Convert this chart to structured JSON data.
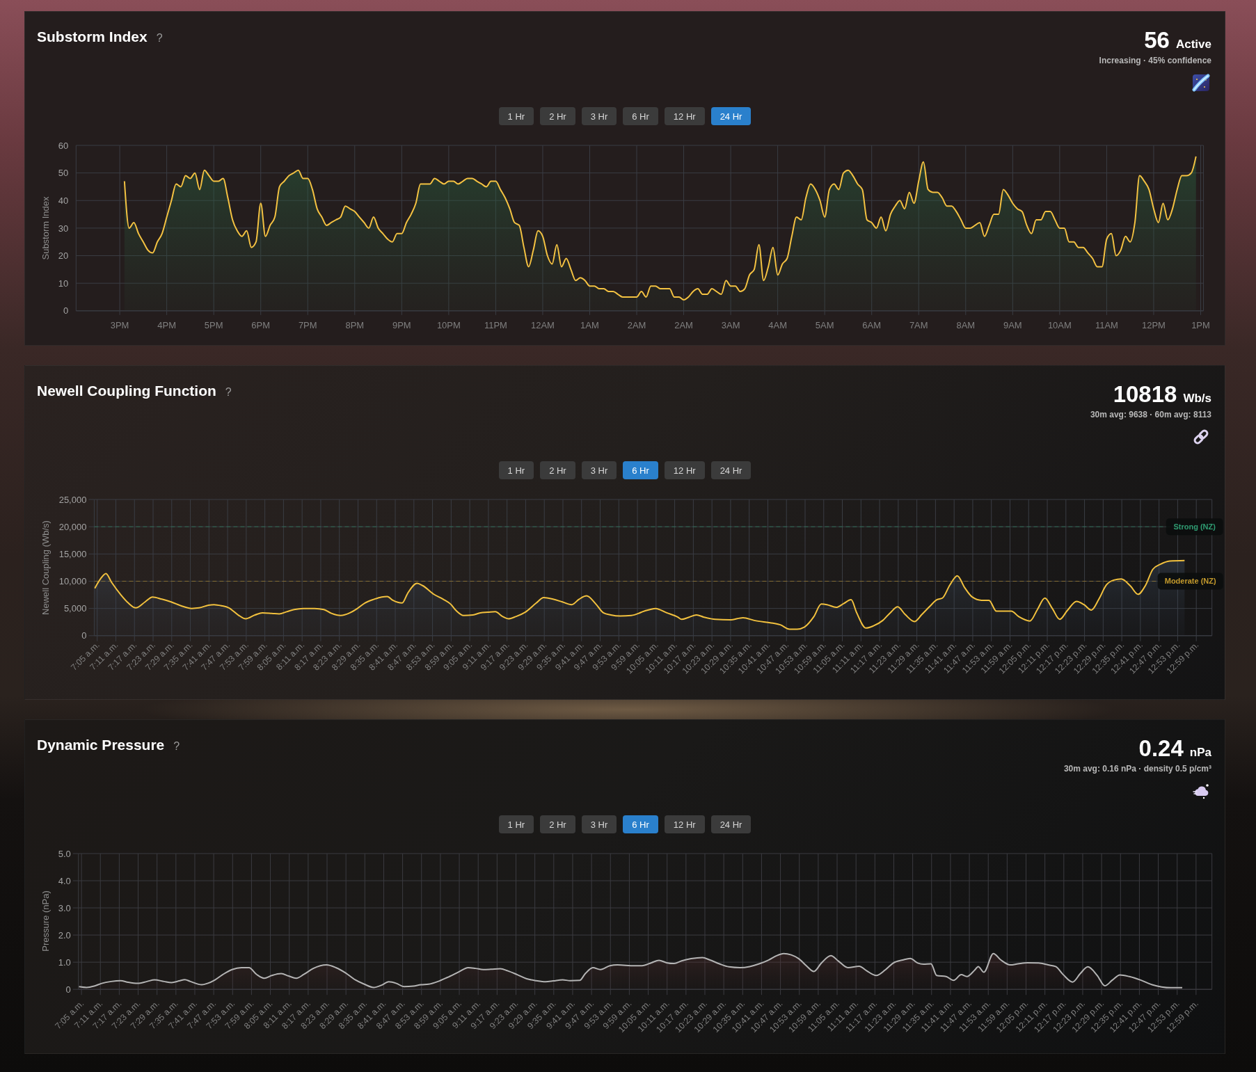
{
  "chart_data": [
    {
      "type": "area",
      "title": "Substorm Index",
      "ylabel": "Substorm Index",
      "annotations": [
        "?",
        "56",
        "Active",
        "Increasing · 45% confidence",
        "1 Hr",
        "2 Hr",
        "3 Hr",
        "6 Hr",
        "12 Hr",
        "24 Hr"
      ],
      "categories": [
        null,
        null,
        null,
        null,
        null,
        null,
        null,
        null,
        null,
        "3PM",
        null,
        null,
        null,
        null,
        null,
        null,
        null,
        null,
        null,
        "4PM",
        null,
        null,
        null,
        null,
        null,
        null,
        null,
        null,
        null,
        "5PM",
        null,
        null,
        null,
        null,
        null,
        null,
        null,
        null,
        null,
        "6PM",
        null,
        null,
        null,
        null,
        null,
        null,
        null,
        null,
        null,
        "7PM",
        null,
        null,
        null,
        null,
        null,
        null,
        null,
        null,
        null,
        "8PM",
        null,
        null,
        null,
        null,
        null,
        null,
        null,
        null,
        null,
        "9PM",
        null,
        null,
        null,
        null,
        null,
        null,
        null,
        null,
        null,
        "10PM",
        null,
        null,
        null,
        null,
        null,
        null,
        null,
        null,
        null,
        "11PM",
        null,
        null,
        null,
        null,
        null,
        null,
        null,
        null,
        null,
        "12AM",
        null,
        null,
        null,
        null,
        null,
        null,
        null,
        null,
        null,
        "1AM",
        null,
        null,
        null,
        null,
        null,
        null,
        null,
        null,
        null,
        "2AM",
        null,
        null,
        null,
        null,
        null,
        null,
        null,
        null,
        null,
        "2AM",
        null,
        null,
        null,
        null,
        null,
        null,
        null,
        null,
        null,
        "3AM",
        null,
        null,
        null,
        null,
        null,
        null,
        null,
        null,
        null,
        "4AM",
        null,
        null,
        null,
        null,
        null,
        null,
        null,
        null,
        null,
        "5AM",
        null,
        null,
        null,
        null,
        null,
        null,
        null,
        null,
        null,
        "6AM",
        null,
        null,
        null,
        null,
        null,
        null,
        null,
        null,
        null,
        "7AM",
        null,
        null,
        null,
        null,
        null,
        null,
        null,
        null,
        null,
        "8AM",
        null,
        null,
        null,
        null,
        null,
        null,
        null,
        null,
        null,
        "9AM",
        null,
        null,
        null,
        null,
        null,
        null,
        null,
        null,
        null,
        "10AM",
        null,
        null,
        null,
        null,
        null,
        null,
        null,
        null,
        null,
        "11AM",
        null,
        null,
        null,
        null,
        null,
        null,
        null,
        null,
        null,
        "12PM",
        null,
        null,
        null,
        null,
        null,
        null,
        null,
        null,
        null,
        "1PM"
      ],
      "values": [
        null,
        null,
        null,
        null,
        null,
        null,
        null,
        null,
        null,
        null,
        47,
        30,
        32,
        28,
        25,
        22,
        21,
        25,
        28,
        34,
        40,
        46,
        45,
        49,
        48,
        50,
        44,
        51,
        49,
        47,
        47,
        48,
        41,
        33,
        29,
        27,
        29,
        23,
        25,
        39,
        27,
        31,
        34,
        45,
        47,
        49,
        50,
        51,
        48,
        48,
        44,
        37,
        34,
        31,
        32,
        33,
        34,
        38,
        37,
        36,
        34,
        32,
        30,
        34,
        30,
        28,
        26,
        25,
        28,
        28,
        32,
        35,
        39,
        46,
        46,
        46,
        48,
        47,
        46,
        47,
        47,
        46,
        47,
        48,
        48,
        47,
        46,
        45,
        47,
        47,
        44,
        41,
        37,
        32,
        31,
        23,
        16,
        22,
        29,
        27,
        20,
        17,
        24,
        16,
        19,
        15,
        11,
        12,
        11,
        9,
        9,
        8,
        8,
        7,
        7,
        6,
        5,
        5,
        5,
        5,
        7,
        5,
        9,
        9,
        8,
        8,
        8,
        5,
        5,
        4,
        5,
        7,
        8,
        6,
        6,
        8,
        7,
        6,
        11,
        9,
        9,
        7,
        8,
        13,
        15,
        24,
        11,
        16,
        23,
        13,
        17,
        19,
        27,
        34,
        33,
        41,
        46,
        44,
        40,
        34,
        44,
        46,
        44,
        50,
        51,
        49,
        46,
        44,
        33,
        32,
        30,
        34,
        29,
        35,
        38,
        40,
        37,
        43,
        39,
        47,
        54,
        44,
        43,
        43,
        41,
        38,
        38,
        36,
        33,
        30,
        30,
        31,
        32,
        27,
        31,
        35,
        35,
        44,
        42,
        39,
        37,
        36,
        31,
        28,
        33,
        33,
        36,
        36,
        33,
        30,
        30,
        25,
        25,
        23,
        23,
        21,
        19,
        16,
        16,
        26,
        28,
        20,
        22,
        27,
        25,
        32,
        49,
        47,
        44,
        37,
        32,
        39,
        33,
        37,
        44,
        49,
        49,
        50,
        56,
        null
      ],
      "color": "#f4c242",
      "ylim": [
        0,
        60
      ],
      "yticks": [
        0,
        10,
        20,
        30,
        40,
        50,
        60
      ],
      "grid": true
    },
    {
      "type": "area",
      "title": "Newell Coupling Function",
      "ylabel": "Newell Coupling (Wb/s)",
      "annotations": [
        "?",
        "10818",
        "Wb/s",
        "30m avg: 9638 · 60m avg: 8113",
        "1 Hr",
        "2 Hr",
        "3 Hr",
        "6 Hr",
        "12 Hr",
        "24 Hr"
      ],
      "x": [
        7.07,
        7.1,
        7.13,
        7.16,
        7.21,
        7.25,
        7.29,
        7.34,
        7.38,
        7.43,
        7.48,
        7.54,
        7.59,
        7.63,
        7.68,
        7.71,
        7.75,
        7.79,
        7.84,
        7.88,
        7.93,
        7.97,
        8.02,
        8.06,
        8.1,
        8.14,
        8.19,
        8.25,
        8.3,
        8.34,
        8.39,
        8.44,
        8.48,
        8.52,
        8.57,
        8.61,
        8.64,
        8.67,
        8.72,
        8.75,
        8.8,
        8.83,
        8.89,
        8.94,
        8.98,
        9.01,
        9.05,
        9.1,
        9.14,
        9.18,
        9.22,
        9.26,
        9.29,
        9.33,
        9.38,
        9.44,
        9.48,
        9.53,
        9.58,
        9.63,
        9.67,
        9.71,
        9.76,
        9.8,
        9.84,
        9.89,
        9.95,
        9.99,
        10.01,
        10.05,
        10.08,
        10.14,
        10.2,
        10.22,
        10.26,
        10.3,
        10.34,
        10.4,
        10.48,
        10.55,
        10.61,
        10.71,
        10.75,
        10.8,
        10.84,
        10.88,
        10.93,
        10.97,
        11,
        11.05,
        11.09,
        11.13,
        11.16,
        11.21,
        11.25,
        11.3,
        11.34,
        11.38,
        11.42,
        11.47,
        11.51,
        11.55,
        11.59,
        11.62,
        11.66,
        11.7,
        11.74,
        11.78,
        11.83,
        11.87,
        11.91,
        11.95,
        11.99,
        12.03,
        12.09,
        12.13,
        12.17,
        12.21,
        12.25,
        12.29,
        12.34,
        12.38,
        12.42,
        12.46,
        12.5,
        12.54,
        12.58,
        12.63,
        12.67,
        12.71,
        12.75,
        12.79,
        12.84,
        12.92
      ],
      "values": [
        8700,
        10400,
        11400,
        9800,
        7500,
        6000,
        5100,
        6200,
        7100,
        6700,
        6200,
        5400,
        5000,
        5100,
        5600,
        5700,
        5500,
        5100,
        3800,
        3100,
        3800,
        4200,
        4100,
        4000,
        4400,
        4800,
        5000,
        5000,
        4800,
        4100,
        3700,
        4200,
        5000,
        6000,
        6700,
        7100,
        7200,
        6500,
        6000,
        7800,
        9600,
        9200,
        7600,
        6700,
        5800,
        4600,
        3700,
        3800,
        4200,
        4300,
        4400,
        3500,
        3100,
        3500,
        4300,
        6000,
        7000,
        6700,
        6200,
        5700,
        6700,
        7300,
        5800,
        4200,
        3800,
        3600,
        3700,
        4100,
        4400,
        4800,
        5000,
        4200,
        3400,
        3000,
        3400,
        3800,
        3400,
        3000,
        2900,
        3300,
        2800,
        2300,
        2000,
        1200,
        1200,
        1600,
        3500,
        5800,
        5700,
        5200,
        5900,
        6600,
        4200,
        1400,
        1800,
        2800,
        4200,
        5300,
        3900,
        2600,
        3900,
        5300,
        6600,
        6900,
        9300,
        11000,
        8800,
        7100,
        6500,
        6500,
        4500,
        4500,
        4500,
        3500,
        2700,
        4800,
        6900,
        5000,
        3000,
        4600,
        6300,
        5700,
        4700,
        6700,
        9300,
        10200,
        10400,
        9100,
        7600,
        9200,
        12200,
        13100,
        13700,
        13800
      ],
      "color": "#f2c13e",
      "xlim": [
        7.067,
        13.067
      ],
      "xticks": [
        {
          "value": 7.083,
          "label": "7:05 a.m."
        },
        {
          "value": 7.183,
          "label": "7:11 a.m."
        },
        {
          "value": 7.283,
          "label": "7:17 a.m."
        },
        {
          "value": 7.383,
          "label": "7:23 a.m."
        },
        {
          "value": 7.483,
          "label": "7:29 a.m."
        },
        {
          "value": 7.583,
          "label": "7:35 a.m."
        },
        {
          "value": 7.683,
          "label": "7:41 a.m."
        },
        {
          "value": 7.783,
          "label": "7:47 a.m."
        },
        {
          "value": 7.883,
          "label": "7:53 a.m."
        },
        {
          "value": 7.983,
          "label": "7:59 a.m."
        },
        {
          "value": 8.083,
          "label": "8:05 a.m."
        },
        {
          "value": 8.183,
          "label": "8:11 a.m."
        },
        {
          "value": 8.283,
          "label": "8:17 a.m."
        },
        {
          "value": 8.383,
          "label": "8:23 a.m."
        },
        {
          "value": 8.483,
          "label": "8:29 a.m."
        },
        {
          "value": 8.583,
          "label": "8:35 a.m."
        },
        {
          "value": 8.683,
          "label": "8:41 a.m."
        },
        {
          "value": 8.783,
          "label": "8:47 a.m."
        },
        {
          "value": 8.883,
          "label": "8:53 a.m."
        },
        {
          "value": 8.983,
          "label": "8:59 a.m."
        },
        {
          "value": 9.083,
          "label": "9:05 a.m."
        },
        {
          "value": 9.183,
          "label": "9:11 a.m."
        },
        {
          "value": 9.283,
          "label": "9:17 a.m."
        },
        {
          "value": 9.383,
          "label": "9:23 a.m."
        },
        {
          "value": 9.483,
          "label": "9:29 a.m."
        },
        {
          "value": 9.583,
          "label": "9:35 a.m."
        },
        {
          "value": 9.683,
          "label": "9:41 a.m."
        },
        {
          "value": 9.783,
          "label": "9:47 a.m."
        },
        {
          "value": 9.883,
          "label": "9:53 a.m."
        },
        {
          "value": 9.983,
          "label": "9:59 a.m."
        },
        {
          "value": 10.083,
          "label": "10:05 a.m."
        },
        {
          "value": 10.183,
          "label": "10:11 a.m."
        },
        {
          "value": 10.283,
          "label": "10:17 a.m."
        },
        {
          "value": 10.383,
          "label": "10:23 a.m."
        },
        {
          "value": 10.483,
          "label": "10:29 a.m."
        },
        {
          "value": 10.583,
          "label": "10:35 a.m."
        },
        {
          "value": 10.683,
          "label": "10:41 a.m."
        },
        {
          "value": 10.783,
          "label": "10:47 a.m."
        },
        {
          "value": 10.883,
          "label": "10:53 a.m."
        },
        {
          "value": 10.983,
          "label": "10:59 a.m."
        },
        {
          "value": 11.083,
          "label": "11:05 a.m."
        },
        {
          "value": 11.183,
          "label": "11:11 a.m."
        },
        {
          "value": 11.283,
          "label": "11:17 a.m."
        },
        {
          "value": 11.383,
          "label": "11:23 a.m."
        },
        {
          "value": 11.483,
          "label": "11:29 a.m."
        },
        {
          "value": 11.583,
          "label": "11:35 a.m."
        },
        {
          "value": 11.683,
          "label": "11:41 a.m."
        },
        {
          "value": 11.783,
          "label": "11:47 a.m."
        },
        {
          "value": 11.883,
          "label": "11:53 a.m."
        },
        {
          "value": 11.983,
          "label": "11:59 a.m."
        },
        {
          "value": 12.083,
          "label": "12:05 p.m."
        },
        {
          "value": 12.183,
          "label": "12:11 p.m."
        },
        {
          "value": 12.283,
          "label": "12:17 p.m."
        },
        {
          "value": 12.383,
          "label": "12:23 p.m."
        },
        {
          "value": 12.483,
          "label": "12:29 p.m."
        },
        {
          "value": 12.583,
          "label": "12:35 p.m."
        },
        {
          "value": 12.683,
          "label": "12:41 p.m."
        },
        {
          "value": 12.783,
          "label": "12:47 p.m."
        },
        {
          "value": 12.883,
          "label": "12:53 p.m."
        },
        {
          "value": 12.983,
          "label": "12:59 p.m."
        }
      ],
      "ylim": [
        0,
        25000
      ],
      "yticks": [
        0,
        {
          "value": 5000,
          "label": "5,000"
        },
        {
          "value": 10000,
          "label": "10,000"
        },
        {
          "value": 15000,
          "label": "15,000"
        },
        {
          "value": 20000,
          "label": "20,000"
        },
        {
          "value": 25000,
          "label": "25,000"
        }
      ],
      "ref_lines": [
        {
          "axis": "y",
          "value": 20000,
          "label": "Strong (NZ)",
          "color": "#2f9c72",
          "line_style": "dashed"
        },
        {
          "axis": "y",
          "value": 10000,
          "label": "Moderate (NZ)",
          "color": "#c49a2c",
          "line_style": "dashed"
        }
      ],
      "grid": true
    },
    {
      "type": "area",
      "title": "Dynamic Pressure",
      "ylabel": "Pressure (nPa)",
      "annotations": [
        "?",
        "0.24",
        "nPa",
        "30m avg: 0.16 nPa · density 0.5 p/cm³",
        "1 Hr",
        "2 Hr",
        "3 Hr",
        "6 Hr",
        "12 Hr",
        "24 Hr"
      ],
      "x": [
        7.07,
        7.11,
        7.15,
        7.19,
        7.24,
        7.29,
        7.33,
        7.38,
        7.43,
        7.47,
        7.52,
        7.56,
        7.6,
        7.63,
        7.66,
        7.72,
        7.75,
        7.79,
        7.83,
        7.88,
        7.93,
        7.97,
        8.01,
        8.05,
        8.09,
        8.14,
        8.18,
        8.22,
        8.26,
        8.31,
        8.38,
        8.43,
        8.48,
        8.53,
        8.58,
        8.63,
        8.67,
        8.71,
        8.75,
        8.79,
        8.84,
        8.88,
        8.92,
        8.97,
        9.02,
        9.08,
        9.13,
        9.17,
        9.21,
        9.25,
        9.3,
        9.34,
        9.39,
        9.44,
        9.49,
        9.54,
        9.58,
        9.63,
        9.67,
        9.72,
        9.75,
        9.79,
        9.83,
        9.88,
        9.92,
        10.01,
        10.05,
        10.1,
        10.14,
        10.18,
        10.22,
        10.26,
        10.31,
        10.37,
        10.41,
        10.46,
        10.51,
        10.57,
        10.62,
        10.67,
        10.72,
        10.76,
        10.8,
        10.84,
        10.88,
        10.92,
        10.96,
        11,
        11.05,
        11.09,
        11.14,
        11.2,
        11.24,
        11.29,
        11.34,
        11.38,
        11.43,
        11.47,
        11.51,
        11.54,
        11.58,
        11.61,
        11.66,
        11.7,
        11.74,
        11.77,
        11.81,
        11.83,
        11.86,
        11.91,
        11.95,
        12,
        12.04,
        12.09,
        12.15,
        12.2,
        12.24,
        12.28,
        12.33,
        12.37,
        12.41,
        12.46,
        12.5,
        12.54,
        12.58,
        12.63,
        12.69,
        12.75,
        12.8,
        12.85,
        12.91
      ],
      "values": [
        0.1,
        0.07,
        0.12,
        0.22,
        0.29,
        0.32,
        0.26,
        0.22,
        0.29,
        0.35,
        0.29,
        0.25,
        0.31,
        0.36,
        0.29,
        0.17,
        0.22,
        0.35,
        0.54,
        0.73,
        0.8,
        0.8,
        0.55,
        0.41,
        0.51,
        0.58,
        0.49,
        0.41,
        0.55,
        0.77,
        0.9,
        0.8,
        0.61,
        0.36,
        0.19,
        0.07,
        0.15,
        0.28,
        0.22,
        0.1,
        0.12,
        0.17,
        0.19,
        0.29,
        0.44,
        0.64,
        0.8,
        0.77,
        0.73,
        0.74,
        0.76,
        0.68,
        0.54,
        0.39,
        0.32,
        0.28,
        0.31,
        0.35,
        0.32,
        0.33,
        0.58,
        0.8,
        0.73,
        0.87,
        0.9,
        0.87,
        0.87,
        0.98,
        1.07,
        0.98,
        0.95,
        1.05,
        1.13,
        1.17,
        1.08,
        0.94,
        0.83,
        0.8,
        0.84,
        0.94,
        1.08,
        1.23,
        1.32,
        1.27,
        1.13,
        0.87,
        0.66,
        0.97,
        1.24,
        1.04,
        0.8,
        0.85,
        0.68,
        0.51,
        0.73,
        0.97,
        1.08,
        1.14,
        0.97,
        0.93,
        0.94,
        0.51,
        0.47,
        0.33,
        0.54,
        0.47,
        0.7,
        0.84,
        0.63,
        1.32,
        1.08,
        0.9,
        0.94,
        0.98,
        0.97,
        0.9,
        0.84,
        0.54,
        0.27,
        0.58,
        0.83,
        0.51,
        0.13,
        0.34,
        0.53,
        0.47,
        0.34,
        0.17,
        0.09,
        0.06,
        0.06
      ],
      "color": "#b4b4b4",
      "xlim": [
        7.067,
        13.067
      ],
      "xticks": [
        {
          "value": 7.083,
          "label": "7:05 a.m."
        },
        {
          "value": 7.183,
          "label": "7:11 a.m."
        },
        {
          "value": 7.283,
          "label": "7:17 a.m."
        },
        {
          "value": 7.383,
          "label": "7:23 a.m."
        },
        {
          "value": 7.483,
          "label": "7:29 a.m."
        },
        {
          "value": 7.583,
          "label": "7:35 a.m."
        },
        {
          "value": 7.683,
          "label": "7:41 a.m."
        },
        {
          "value": 7.783,
          "label": "7:47 a.m."
        },
        {
          "value": 7.883,
          "label": "7:53 a.m."
        },
        {
          "value": 7.983,
          "label": "7:59 a.m."
        },
        {
          "value": 8.083,
          "label": "8:05 a.m."
        },
        {
          "value": 8.183,
          "label": "8:11 a.m."
        },
        {
          "value": 8.283,
          "label": "8:17 a.m."
        },
        {
          "value": 8.383,
          "label": "8:23 a.m."
        },
        {
          "value": 8.483,
          "label": "8:29 a.m."
        },
        {
          "value": 8.583,
          "label": "8:35 a.m."
        },
        {
          "value": 8.683,
          "label": "8:41 a.m."
        },
        {
          "value": 8.783,
          "label": "8:47 a.m."
        },
        {
          "value": 8.883,
          "label": "8:53 a.m."
        },
        {
          "value": 8.983,
          "label": "8:59 a.m."
        },
        {
          "value": 9.083,
          "label": "9:05 a.m."
        },
        {
          "value": 9.183,
          "label": "9:11 a.m."
        },
        {
          "value": 9.283,
          "label": "9:17 a.m."
        },
        {
          "value": 9.383,
          "label": "9:23 a.m."
        },
        {
          "value": 9.483,
          "label": "9:29 a.m."
        },
        {
          "value": 9.583,
          "label": "9:35 a.m."
        },
        {
          "value": 9.683,
          "label": "9:41 a.m."
        },
        {
          "value": 9.783,
          "label": "9:47 a.m."
        },
        {
          "value": 9.883,
          "label": "9:53 a.m."
        },
        {
          "value": 9.983,
          "label": "9:59 a.m."
        },
        {
          "value": 10.083,
          "label": "10:05 a.m."
        },
        {
          "value": 10.183,
          "label": "10:11 a.m."
        },
        {
          "value": 10.283,
          "label": "10:17 a.m."
        },
        {
          "value": 10.383,
          "label": "10:23 a.m."
        },
        {
          "value": 10.483,
          "label": "10:29 a.m."
        },
        {
          "value": 10.583,
          "label": "10:35 a.m."
        },
        {
          "value": 10.683,
          "label": "10:41 a.m."
        },
        {
          "value": 10.783,
          "label": "10:47 a.m."
        },
        {
          "value": 10.883,
          "label": "10:53 a.m."
        },
        {
          "value": 10.983,
          "label": "10:59 a.m."
        },
        {
          "value": 11.083,
          "label": "11:05 a.m."
        },
        {
          "value": 11.183,
          "label": "11:11 a.m."
        },
        {
          "value": 11.283,
          "label": "11:17 a.m."
        },
        {
          "value": 11.383,
          "label": "11:23 a.m."
        },
        {
          "value": 11.483,
          "label": "11:29 a.m."
        },
        {
          "value": 11.583,
          "label": "11:35 a.m."
        },
        {
          "value": 11.683,
          "label": "11:41 a.m."
        },
        {
          "value": 11.783,
          "label": "11:47 a.m."
        },
        {
          "value": 11.883,
          "label": "11:53 a.m."
        },
        {
          "value": 11.983,
          "label": "11:59 a.m."
        },
        {
          "value": 12.083,
          "label": "12:05 p.m."
        },
        {
          "value": 12.183,
          "label": "12:11 p.m."
        },
        {
          "value": 12.283,
          "label": "12:17 p.m."
        },
        {
          "value": 12.383,
          "label": "12:23 p.m."
        },
        {
          "value": 12.483,
          "label": "12:29 p.m."
        },
        {
          "value": 12.583,
          "label": "12:35 p.m."
        },
        {
          "value": 12.683,
          "label": "12:41 p.m."
        },
        {
          "value": 12.783,
          "label": "12:47 p.m."
        },
        {
          "value": 12.883,
          "label": "12:53 p.m."
        },
        {
          "value": 12.983,
          "label": "12:59 p.m."
        }
      ],
      "ylim": [
        0,
        5
      ],
      "yticks": [
        0,
        {
          "value": 1,
          "label": "1.0"
        },
        {
          "value": 2,
          "label": "2.0"
        },
        {
          "value": 3,
          "label": "3.0"
        },
        {
          "value": 4,
          "label": "4.0"
        },
        {
          "value": 5,
          "label": "5.0"
        }
      ],
      "grid": true
    }
  ]
}
